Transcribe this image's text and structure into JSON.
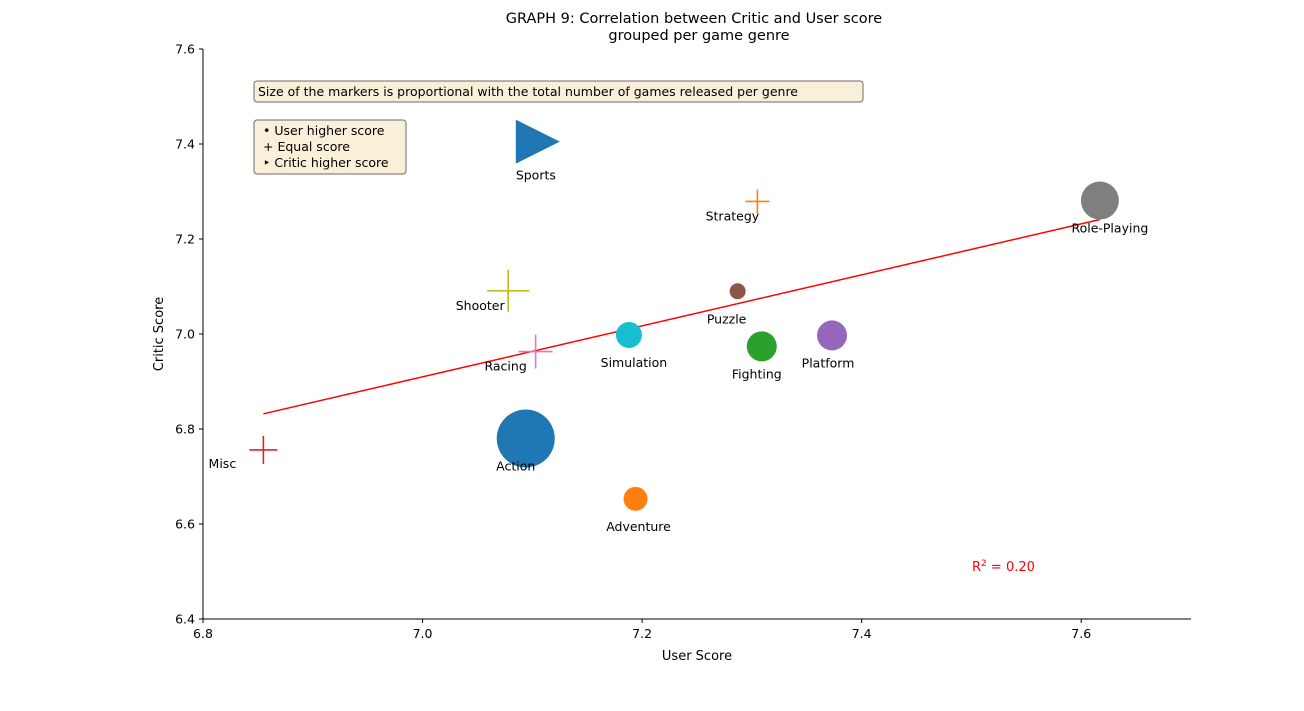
{
  "chart_data": {
    "type": "scatter",
    "title_line1": "GRAPH 9: Correlation between Critic and User score",
    "title_line2": "grouped per game genre",
    "xlabel": "User Score",
    "ylabel": "Critic Score",
    "xlim": [
      6.8,
      7.7
    ],
    "ylim": [
      6.4,
      7.6
    ],
    "xticks": [
      "6.8",
      "7.0",
      "7.2",
      "7.4",
      "7.6"
    ],
    "yticks": [
      "6.4",
      "6.6",
      "6.8",
      "7.0",
      "7.2",
      "7.4",
      "7.6"
    ],
    "grid": false,
    "points": [
      {
        "label": "Sports",
        "x": 7.105,
        "y": 7.405,
        "marker": "triangle",
        "color": "#1f77b4",
        "size": 44
      },
      {
        "label": "Strategy",
        "x": 7.305,
        "y": 7.279,
        "marker": "plus",
        "color": "#ff7f0e",
        "size": 24
      },
      {
        "label": "Role-Playing",
        "x": 7.617,
        "y": 7.281,
        "marker": "circle",
        "color": "#7f7f7f",
        "size": 38
      },
      {
        "label": "Shooter",
        "x": 7.078,
        "y": 7.091,
        "marker": "plus",
        "color": "#bcbd22",
        "size": 42
      },
      {
        "label": "Puzzle",
        "x": 7.287,
        "y": 7.09,
        "marker": "circle",
        "color": "#8c564b",
        "size": 16
      },
      {
        "label": "Simulation",
        "x": 7.188,
        "y": 6.998,
        "marker": "circle",
        "color": "#17becf",
        "size": 26
      },
      {
        "label": "Platform",
        "x": 7.373,
        "y": 6.997,
        "marker": "circle",
        "color": "#9467bd",
        "size": 30
      },
      {
        "label": "Racing",
        "x": 7.103,
        "y": 6.963,
        "marker": "plus",
        "color": "#e377c2",
        "size": 34
      },
      {
        "label": "Fighting",
        "x": 7.309,
        "y": 6.974,
        "marker": "circle",
        "color": "#2ca02c",
        "size": 30
      },
      {
        "label": "Misc",
        "x": 6.855,
        "y": 6.756,
        "marker": "plus",
        "color": "#d62728",
        "size": 28
      },
      {
        "label": "Action",
        "x": 7.094,
        "y": 6.78,
        "marker": "circle",
        "color": "#1f77b4",
        "size": 58
      },
      {
        "label": "Adventure",
        "x": 7.194,
        "y": 6.653,
        "marker": "circle",
        "color": "#ff7f0e",
        "size": 24
      }
    ],
    "trendline": {
      "x": [
        6.855,
        7.617
      ],
      "y": [
        6.832,
        7.241
      ],
      "color": "#ff0000"
    },
    "r2_prefix": "R",
    "r2_sup": "2",
    "r2_value": " = 0.20",
    "r2_color": "#ff0000",
    "note": "Size of the markers is proportional with the total number of games released per genre",
    "legend": [
      "• User higher score",
      "+ Equal score",
      "‣ Critic higher score"
    ],
    "box_color": "#faefd9"
  }
}
